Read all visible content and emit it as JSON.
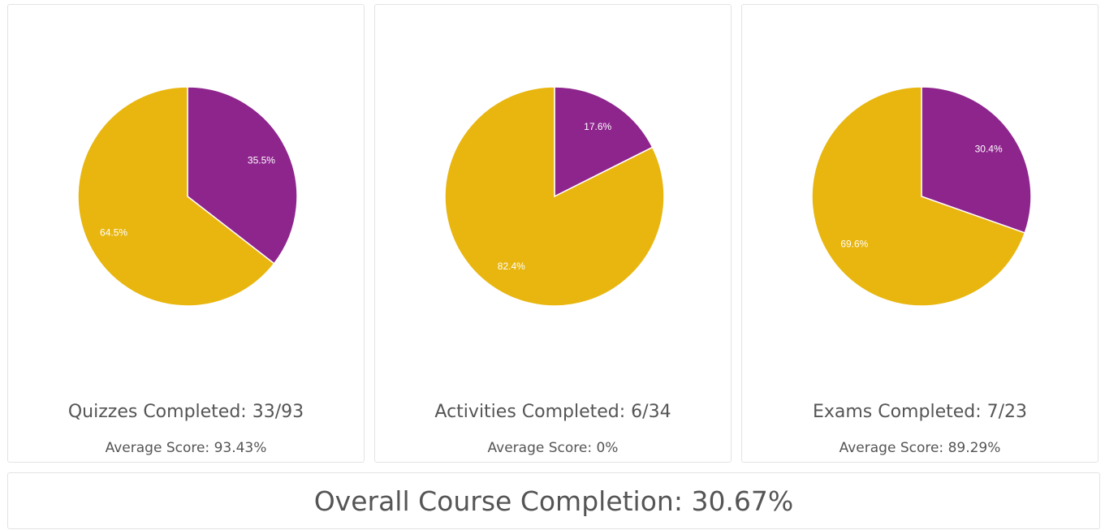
{
  "colors": {
    "completed": "#8e258d",
    "remaining": "#e8b60f"
  },
  "chart_data": [
    {
      "type": "pie",
      "slices": [
        {
          "value": 35.5,
          "label": "35.5%",
          "color": "#8e258d"
        },
        {
          "value": 64.5,
          "label": "64.5%",
          "color": "#e8b60f"
        }
      ],
      "title": "Quizzes Completed: 33/93",
      "subtitle": "Average Score: 93.43%"
    },
    {
      "type": "pie",
      "slices": [
        {
          "value": 17.6,
          "label": "17.6%",
          "color": "#8e258d"
        },
        {
          "value": 82.4,
          "label": "82.4%",
          "color": "#e8b60f"
        }
      ],
      "title": "Activities Completed: 6/34",
      "subtitle": "Average Score: 0%"
    },
    {
      "type": "pie",
      "slices": [
        {
          "value": 30.4,
          "label": "30.4%",
          "color": "#8e258d"
        },
        {
          "value": 69.6,
          "label": "69.6%",
          "color": "#e8b60f"
        }
      ],
      "title": "Exams Completed: 7/23",
      "subtitle": "Average Score: 89.29%"
    }
  ],
  "overall": "Overall Course Completion: 30.67%"
}
